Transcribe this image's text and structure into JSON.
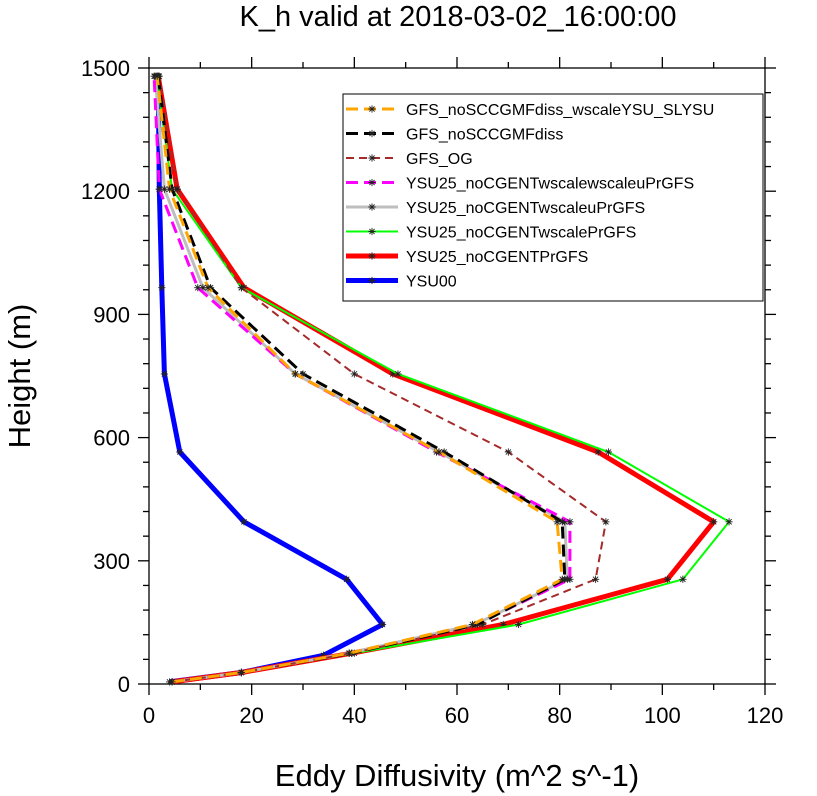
{
  "chart_data": {
    "type": "line",
    "title": "K_h valid at 2018-03-02_16:00:00",
    "xlabel": "Eddy Diffusivity (m^2 s^-1)",
    "ylabel": "Height (m)",
    "xlim": [
      0,
      120
    ],
    "ylim": [
      0,
      1500
    ],
    "x_ticks": [
      0,
      20,
      40,
      60,
      80,
      100,
      120
    ],
    "y_ticks": [
      0,
      300,
      600,
      900,
      1200,
      1500
    ],
    "grid": false,
    "legend_position": "top-right",
    "heights": [
      5,
      28,
      75,
      145,
      255,
      395,
      565,
      755,
      965,
      1205,
      1480
    ],
    "series": [
      {
        "name": "GFS_noSCCGMFdiss_wscaleYSU_SLYSU",
        "color": "#ffa500",
        "dash": "long-dash",
        "width": 3,
        "values": [
          4.5,
          18,
          39,
          63,
          80.5,
          79.5,
          56.5,
          28.5,
          11.5,
          4,
          1.6
        ]
      },
      {
        "name": "GFS_noSCCGMFdiss",
        "color": "#000000",
        "dash": "long-dash",
        "width": 3,
        "values": [
          4.5,
          18,
          39.5,
          64,
          81,
          80.5,
          57.5,
          30,
          12,
          4.5,
          1.8
        ]
      },
      {
        "name": "GFS_OG",
        "color": "#a52a2a",
        "dash": "medium-dash",
        "width": 2,
        "values": [
          4.5,
          18,
          39.5,
          65,
          87,
          89,
          70,
          40,
          18,
          5.5,
          2
        ]
      },
      {
        "name": "YSU25_noCGENTwscalewscaleuPrGFS",
        "color": "#ff00ff",
        "dash": "long-dash",
        "width": 3,
        "values": [
          4.5,
          18,
          39,
          63.5,
          82,
          82,
          56,
          28.5,
          9.5,
          2,
          1
        ]
      },
      {
        "name": "YSU25_noCGENTwscaleuPrGFS",
        "color": "#bebebe",
        "dash": "solid",
        "width": 3,
        "values": [
          4.5,
          18,
          39,
          63.5,
          81.5,
          81,
          56.5,
          28.5,
          10.5,
          3,
          1.2
        ]
      },
      {
        "name": "YSU25_noCGENTwscalePrGFS",
        "color": "#00ff00",
        "dash": "solid",
        "width": 2,
        "values": [
          4.5,
          18,
          40,
          72,
          104,
          113,
          89.5,
          48.5,
          18,
          4.5,
          1.5
        ]
      },
      {
        "name": "YSU25_noCGENTPrGFS",
        "color": "#ff0000",
        "dash": "solid",
        "width": 5,
        "values": [
          4.5,
          18,
          39.5,
          69,
          101,
          110,
          87.5,
          47.5,
          18.5,
          5.5,
          1.8
        ]
      },
      {
        "name": "YSU00",
        "color": "#0000ff",
        "dash": "solid",
        "width": 5,
        "heights": [
          5,
          28,
          70,
          145,
          255,
          395,
          565,
          755,
          965,
          1205,
          1480
        ],
        "values": [
          4,
          18,
          34,
          45.5,
          38.5,
          18.5,
          6,
          3,
          2.5,
          2,
          1.8
        ]
      }
    ]
  }
}
